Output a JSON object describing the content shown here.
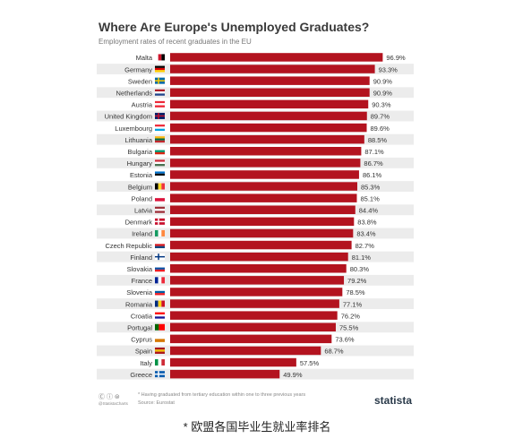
{
  "header": {
    "title": "Where Are Europe's Unemployed Graduates?",
    "subtitle": "Employment rates of recent graduates in the EU"
  },
  "footer": {
    "note": "* Having graduated from tertiary education within one to three previous years",
    "source": "Source: Eurostat",
    "cc": "Ⓒ ⓘ ⊜",
    "handle": "@StatistaCharts",
    "brand": "statista"
  },
  "caption": "* 欧盟各国毕业生就业率排名",
  "chart_data": {
    "type": "bar",
    "orientation": "horizontal",
    "categories": [
      "Malta",
      "Germany",
      "Sweden",
      "Netherlands",
      "Austria",
      "United Kingdom",
      "Luxembourg",
      "Lithuania",
      "Bulgaria",
      "Hungary",
      "Estonia",
      "Belgium",
      "Poland",
      "Latvia",
      "Denmark",
      "Ireland",
      "Czech Republic",
      "Finland",
      "Slovakia",
      "France",
      "Slovenia",
      "Romania",
      "Croatia",
      "Portugal",
      "Cyprus",
      "Spain",
      "Italy",
      "Greece"
    ],
    "values": [
      96.9,
      93.3,
      90.9,
      90.9,
      90.3,
      89.7,
      89.6,
      88.5,
      87.1,
      86.7,
      86.1,
      85.3,
      85.1,
      84.4,
      83.8,
      83.4,
      82.7,
      81.1,
      80.3,
      79.2,
      78.5,
      77.1,
      76.2,
      75.5,
      73.6,
      68.7,
      57.5,
      49.9
    ],
    "value_labels": [
      "96.9%",
      "93.3%",
      "90.9%",
      "90.9%",
      "90.3%",
      "89.7%",
      "89.6%",
      "88.5%",
      "87.1%",
      "86.7%",
      "86.1%",
      "85.3%",
      "85.1%",
      "84.4%",
      "83.8%",
      "83.4%",
      "82.7%",
      "81.1%",
      "80.3%",
      "79.2%",
      "78.5%",
      "77.1%",
      "76.2%",
      "75.5%",
      "73.6%",
      "68.7%",
      "57.5%",
      "49.9%"
    ],
    "xlim": [
      0,
      100
    ],
    "bar_color": "#b3131f",
    "grid": false,
    "legend": "none"
  }
}
